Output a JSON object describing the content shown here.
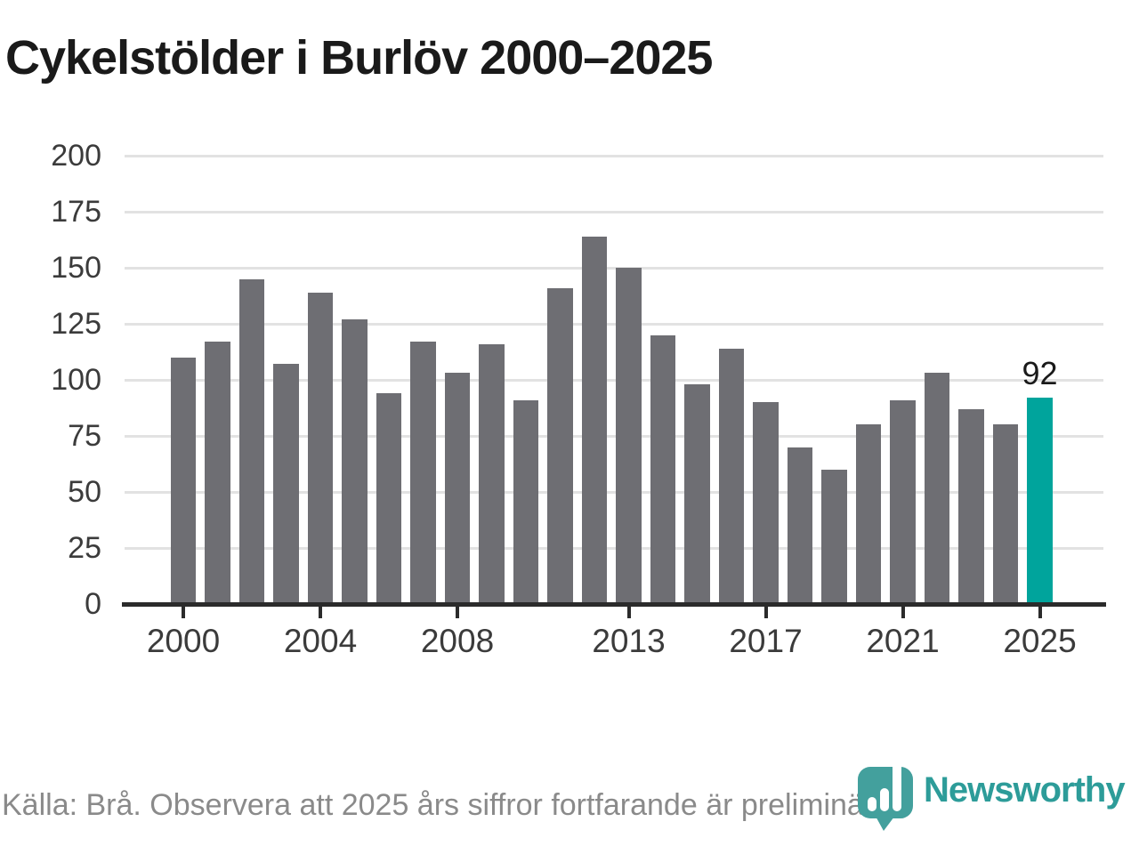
{
  "page": {
    "title": "Cykelstölder i Burlöv 2000–2025"
  },
  "chart_data": {
    "type": "bar",
    "title": "Cykelstölder i Burlöv 2000–2025",
    "categories": [
      2000,
      2001,
      2002,
      2003,
      2004,
      2005,
      2006,
      2007,
      2008,
      2009,
      2010,
      2011,
      2012,
      2013,
      2014,
      2015,
      2016,
      2017,
      2018,
      2019,
      2020,
      2021,
      2022,
      2023,
      2024,
      2025
    ],
    "values": [
      110,
      117,
      145,
      107,
      139,
      127,
      94,
      117,
      103,
      116,
      91,
      141,
      164,
      150,
      120,
      98,
      114,
      90,
      70,
      60,
      80,
      91,
      103,
      87,
      80,
      92
    ],
    "ylim": [
      0,
      200
    ],
    "y_ticks": [
      0,
      25,
      50,
      75,
      100,
      125,
      150,
      175,
      200
    ],
    "x_ticks": [
      2000,
      2004,
      2008,
      2013,
      2017,
      2021,
      2025
    ],
    "grid": true,
    "legend": "none",
    "bar_color": "#6e6e73",
    "highlight": {
      "year": 2025,
      "value": 92,
      "label": "92",
      "color": "#00a49c",
      "note": "preliminary"
    },
    "source": "Källa: Brå. Observera att 2025 års siffror fortfarande är preliminära."
  },
  "footer": {
    "source_text": "Källa: Brå. Observera att 2025 års siffror fortfarande är preliminära.",
    "logo_text": "Newsworthy"
  },
  "colors": {
    "bar": "#6e6e73",
    "highlight_bar": "#00a49c",
    "gridline": "#e2e2e2",
    "axis": "#2b2b2b",
    "title_text": "#1a1a1a",
    "tick_text": "#3b3b3b",
    "source_text": "#8a8a8a",
    "logo_teal": "#2d9c99",
    "logo_icon_teal": "#43a09d"
  }
}
